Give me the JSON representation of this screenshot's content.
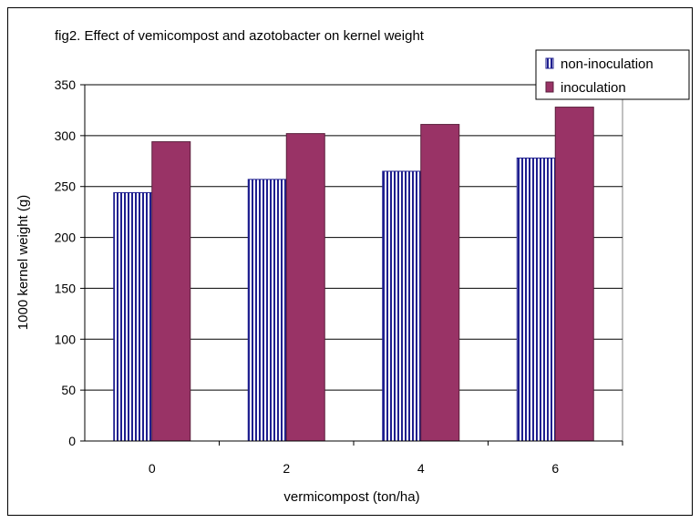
{
  "chart_data": {
    "type": "bar",
    "title": "fig2. Effect of vemicompost and azotobacter on kernel weight",
    "xlabel": "vermicompost (ton/ha)",
    "ylabel": "1000 kernel weight (g)",
    "categories": [
      "0",
      "2",
      "4",
      "6"
    ],
    "ylim": [
      0,
      350
    ],
    "yticks": [
      0,
      50,
      100,
      150,
      200,
      250,
      300,
      350
    ],
    "grid": true,
    "legend_position": "top-right",
    "series": [
      {
        "name": "non-inoculation",
        "values": [
          244,
          257,
          265,
          278
        ],
        "color": "#1f1f8f",
        "pattern": "vertical-stripes"
      },
      {
        "name": "inoculation",
        "values": [
          294,
          302,
          311,
          328
        ],
        "color": "#993366",
        "pattern": "solid"
      }
    ]
  }
}
